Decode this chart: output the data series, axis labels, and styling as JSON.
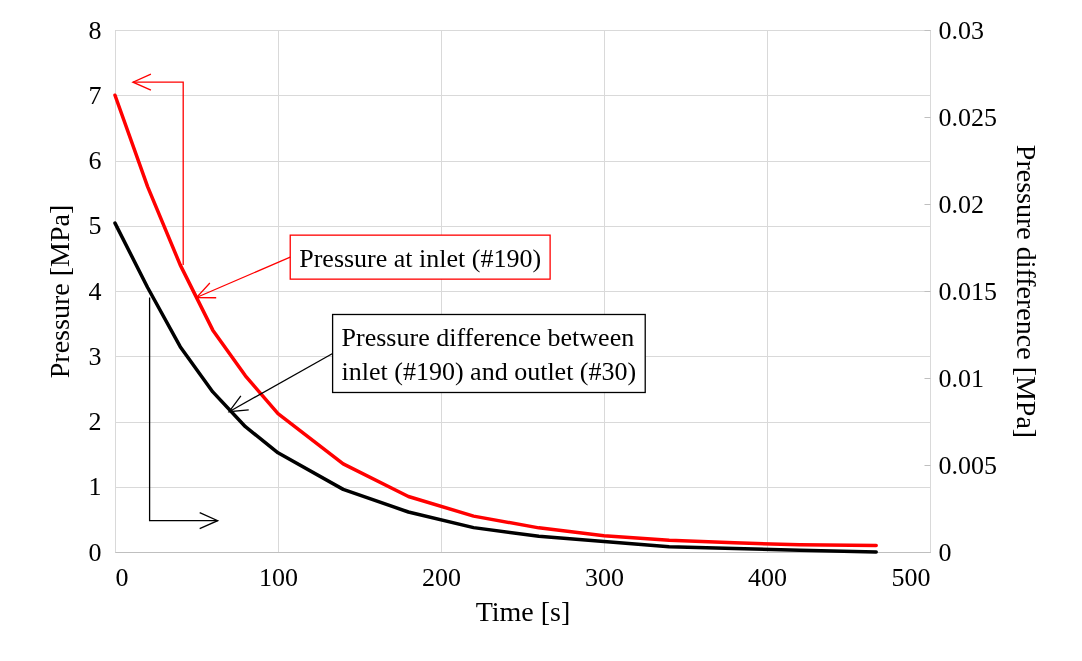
{
  "chart_data": {
    "type": "line",
    "xlabel": "Time [s]",
    "ylabel": "Pressure [MPa]",
    "y2label": "Pressure difference [MPa]",
    "x": [
      0,
      20,
      40,
      60,
      80,
      100,
      140,
      180,
      220,
      260,
      300,
      340,
      380,
      420,
      467
    ],
    "series": [
      {
        "color": "#ff0000",
        "values": [
          7.0,
          5.6,
          4.4,
          3.4,
          2.7,
          2.12,
          1.35,
          0.85,
          0.55,
          0.37,
          0.25,
          0.18,
          0.14,
          0.11,
          0.1
        ]
      },
      {
        "color": "#000000",
        "axis": "y2",
        "values": [
          0.0189,
          0.0152,
          0.0118,
          0.0092,
          0.0072,
          0.0057,
          0.0036,
          0.0023,
          0.0014,
          0.0009,
          0.0006,
          0.0003,
          0.0002,
          0.0001,
          0.0
        ]
      }
    ],
    "xlim": [
      0,
      500
    ],
    "xticks": [
      0,
      100,
      200,
      300,
      400,
      500
    ],
    "ylim": [
      0,
      8
    ],
    "yticks": [
      0,
      1,
      2,
      3,
      4,
      5,
      6,
      7,
      8
    ],
    "y2lim": [
      0,
      0.03
    ],
    "y2ticks": [
      0,
      0.005,
      0.01,
      0.015,
      0.02,
      0.025,
      0.03
    ],
    "grid": true,
    "legend": false,
    "marker": "none",
    "line_style": "solid",
    "annotations": [
      {
        "text": "Pressure at inlet (#190)",
        "x": 50,
        "y": 3.9
      },
      {
        "text": "Pressure difference between\ninlet (#190) and outlet (#30)",
        "x": 70,
        "y": 2.15
      }
    ]
  }
}
